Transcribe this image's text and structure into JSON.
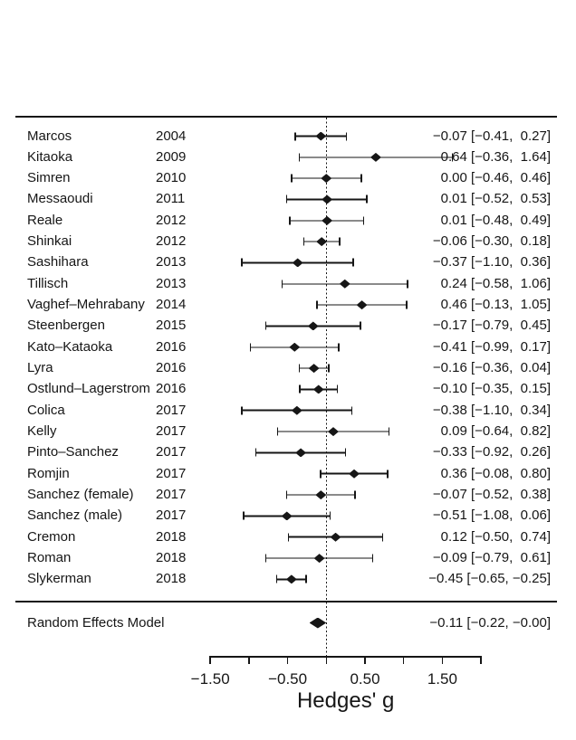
{
  "chart_data": {
    "type": "forest",
    "title": "",
    "xlabel": "Hedges' g",
    "x_axis": {
      "range": [
        -1.5,
        2.0
      ],
      "reference_line": 0,
      "ticks": [
        {
          "value": -1.5,
          "label": "−1.50"
        },
        {
          "value": -1.0,
          "label": ""
        },
        {
          "value": -0.5,
          "label": "−0.50"
        },
        {
          "value": 0.0,
          "label": ""
        },
        {
          "value": 0.5,
          "label": "0.50"
        },
        {
          "value": 1.0,
          "label": ""
        },
        {
          "value": 1.5,
          "label": "1.50"
        },
        {
          "value": 2.0,
          "label": ""
        }
      ]
    },
    "columns": {
      "study": "",
      "year": "",
      "estimate_ci": ""
    },
    "studies": [
      {
        "label": "Marcos",
        "year": "2004",
        "estimate": -0.07,
        "ci_low": -0.41,
        "ci_high": 0.27,
        "display": "−0.07 [−0.41,  0.27]"
      },
      {
        "label": "Kitaoka",
        "year": "2009",
        "estimate": 0.64,
        "ci_low": -0.36,
        "ci_high": 1.64,
        "display": "0.64 [−0.36,  1.64]"
      },
      {
        "label": "Simren",
        "year": "2010",
        "estimate": 0.0,
        "ci_low": -0.46,
        "ci_high": 0.46,
        "display": "0.00 [−0.46,  0.46]"
      },
      {
        "label": "Messaoudi",
        "year": "2011",
        "estimate": 0.01,
        "ci_low": -0.52,
        "ci_high": 0.53,
        "display": "0.01 [−0.52,  0.53]"
      },
      {
        "label": "Reale",
        "year": "2012",
        "estimate": 0.01,
        "ci_low": -0.48,
        "ci_high": 0.49,
        "display": "0.01 [−0.48,  0.49]"
      },
      {
        "label": "Shinkai",
        "year": "2012",
        "estimate": -0.06,
        "ci_low": -0.3,
        "ci_high": 0.18,
        "display": "−0.06 [−0.30,  0.18]"
      },
      {
        "label": "Sashihara",
        "year": "2013",
        "estimate": -0.37,
        "ci_low": -1.1,
        "ci_high": 0.36,
        "display": "−0.37 [−1.10,  0.36]"
      },
      {
        "label": "Tillisch",
        "year": "2013",
        "estimate": 0.24,
        "ci_low": -0.58,
        "ci_high": 1.06,
        "display": "0.24 [−0.58,  1.06]"
      },
      {
        "label": "Vaghef–Mehrabany",
        "year": "2014",
        "estimate": 0.46,
        "ci_low": -0.13,
        "ci_high": 1.05,
        "display": "0.46 [−0.13,  1.05]"
      },
      {
        "label": "Steenbergen",
        "year": "2015",
        "estimate": -0.17,
        "ci_low": -0.79,
        "ci_high": 0.45,
        "display": "−0.17 [−0.79,  0.45]"
      },
      {
        "label": "Kato–Kataoka",
        "year": "2016",
        "estimate": -0.41,
        "ci_low": -0.99,
        "ci_high": 0.17,
        "display": "−0.41 [−0.99,  0.17]"
      },
      {
        "label": "Lyra",
        "year": "2016",
        "estimate": -0.16,
        "ci_low": -0.36,
        "ci_high": 0.04,
        "display": "−0.16 [−0.36,  0.04]"
      },
      {
        "label": "Ostlund–Lagerstrom",
        "year": "2016",
        "estimate": -0.1,
        "ci_low": -0.35,
        "ci_high": 0.15,
        "display": "−0.10 [−0.35,  0.15]"
      },
      {
        "label": "Colica",
        "year": "2017",
        "estimate": -0.38,
        "ci_low": -1.1,
        "ci_high": 0.34,
        "display": "−0.38 [−1.10,  0.34]"
      },
      {
        "label": "Kelly",
        "year": "2017",
        "estimate": 0.09,
        "ci_low": -0.64,
        "ci_high": 0.82,
        "display": "0.09 [−0.64,  0.82]"
      },
      {
        "label": "Pinto–Sanchez",
        "year": "2017",
        "estimate": -0.33,
        "ci_low": -0.92,
        "ci_high": 0.26,
        "display": "−0.33 [−0.92,  0.26]"
      },
      {
        "label": "Romjin",
        "year": "2017",
        "estimate": 0.36,
        "ci_low": -0.08,
        "ci_high": 0.8,
        "display": "0.36 [−0.08,  0.80]"
      },
      {
        "label": "Sanchez (female)",
        "year": "2017",
        "estimate": -0.07,
        "ci_low": -0.52,
        "ci_high": 0.38,
        "display": "−0.07 [−0.52,  0.38]"
      },
      {
        "label": "Sanchez (male)",
        "year": "2017",
        "estimate": -0.51,
        "ci_low": -1.08,
        "ci_high": 0.06,
        "display": "−0.51 [−1.08,  0.06]"
      },
      {
        "label": "Cremon",
        "year": "2018",
        "estimate": 0.12,
        "ci_low": -0.5,
        "ci_high": 0.74,
        "display": "0.12 [−0.50,  0.74]"
      },
      {
        "label": "Roman",
        "year": "2018",
        "estimate": -0.09,
        "ci_low": -0.79,
        "ci_high": 0.61,
        "display": "−0.09 [−0.79,  0.61]"
      },
      {
        "label": "Slykerman",
        "year": "2018",
        "estimate": -0.45,
        "ci_low": -0.65,
        "ci_high": -0.25,
        "display": "−0.45 [−0.65, −0.25]"
      }
    ],
    "summary": {
      "label": "Random Effects Model",
      "estimate": -0.11,
      "ci_low": -0.22,
      "ci_high": -0.0,
      "display": "−0.11 [−0.22, −0.00]"
    },
    "colors": {
      "ink": "#161616",
      "background": "#ffffff"
    },
    "legend": "none",
    "grid": false
  }
}
